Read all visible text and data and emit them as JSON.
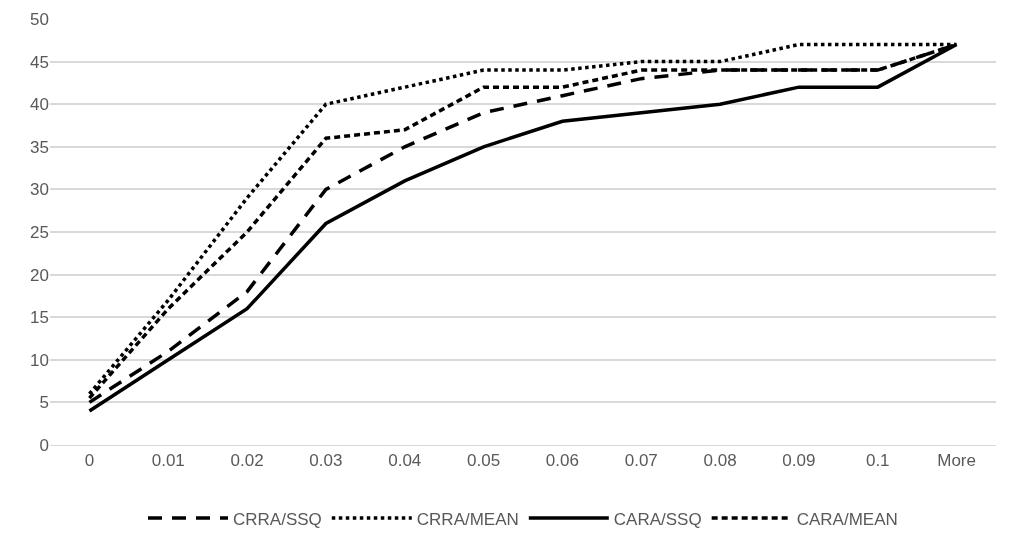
{
  "chart_data": {
    "type": "line",
    "categories": [
      "0",
      "0.01",
      "0.02",
      "0.03",
      "0.04",
      "0.05",
      "0.06",
      "0.07",
      "0.08",
      "0.09",
      "0.1",
      "More"
    ],
    "series": [
      {
        "name": "CRRA/SSQ",
        "color": "#000000",
        "line_style": "longdash",
        "values": [
          5,
          11,
          18,
          30,
          35,
          39,
          41,
          43,
          44,
          44,
          44,
          47
        ]
      },
      {
        "name": "CRRA/MEAN",
        "color": "#000000",
        "line_style": "dotted",
        "values": [
          6,
          17,
          29,
          40,
          42,
          44,
          44,
          45,
          45,
          47,
          47,
          47
        ]
      },
      {
        "name": "CARA/SSQ",
        "color": "#000000",
        "line_style": "solid",
        "values": [
          4,
          10,
          16,
          26,
          31,
          35,
          38,
          39,
          40,
          42,
          42,
          47
        ]
      },
      {
        "name": "CARA/MEAN",
        "color": "#000000",
        "line_style": "dashed",
        "values": [
          5.5,
          16,
          25,
          36,
          37,
          42,
          42,
          44,
          44,
          44,
          44,
          47
        ]
      }
    ],
    "ylim": [
      0,
      50
    ],
    "yticks": [
      0,
      5,
      10,
      15,
      20,
      25,
      30,
      35,
      40,
      45,
      50
    ],
    "grid": "y",
    "legend": "bottom",
    "marker": "none"
  }
}
